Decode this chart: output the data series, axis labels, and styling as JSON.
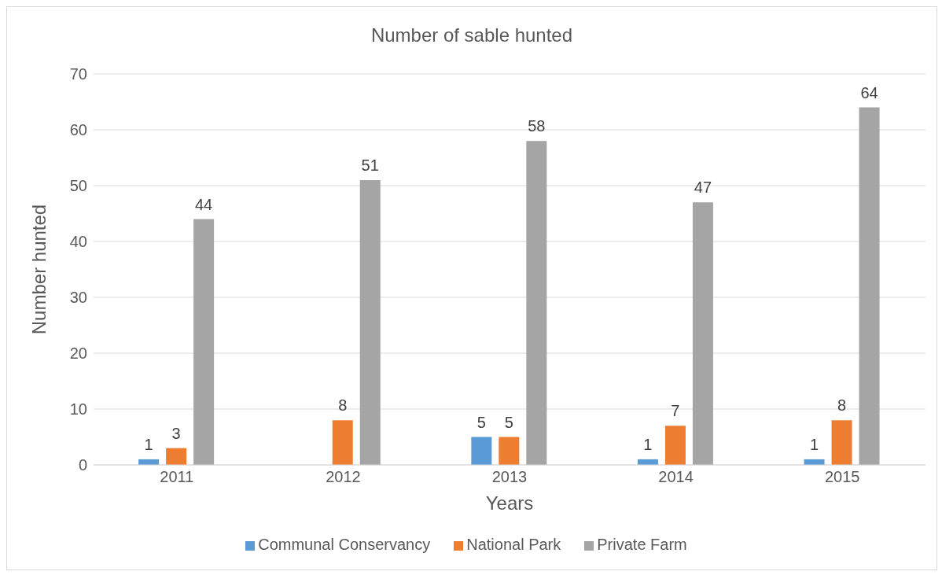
{
  "chart_data": {
    "type": "bar",
    "title": "Number of sable hunted",
    "xlabel": "Years",
    "ylabel": "Number hunted",
    "categories": [
      "2011",
      "2012",
      "2013",
      "2014",
      "2015"
    ],
    "series": [
      {
        "name": "Communal Conservancy",
        "color": "#5b9bd5",
        "values": [
          1,
          null,
          5,
          1,
          1
        ]
      },
      {
        "name": "National Park",
        "color": "#ed7d31",
        "values": [
          3,
          8,
          5,
          7,
          8
        ]
      },
      {
        "name": "Private Farm",
        "color": "#a5a5a5",
        "values": [
          44,
          51,
          58,
          47,
          64
        ]
      }
    ],
    "ylim": [
      0,
      70
    ],
    "yticks": [
      0,
      10,
      20,
      30,
      40,
      50,
      60,
      70
    ],
    "grid": "y",
    "legend": "bottom",
    "data_labels": true
  }
}
